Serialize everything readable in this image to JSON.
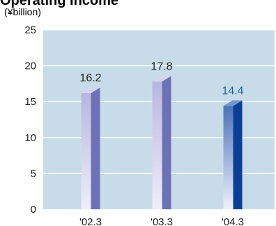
{
  "chart_data": {
    "type": "bar",
    "title": "Operating Income",
    "unit": "(¥billion)",
    "categories": [
      "'02.3",
      "'03.3",
      "'04.3"
    ],
    "values": [
      16.2,
      17.8,
      14.4
    ],
    "value_labels": [
      "16.2",
      "17.8",
      "14.4"
    ],
    "ylim": [
      0,
      25
    ],
    "yticks": [
      "0",
      "5",
      "10",
      "15",
      "20",
      "25"
    ],
    "grid": true,
    "colors": {
      "plot_background": "#c7dce8",
      "gridline": "#ffffff",
      "bar_front_top": "#b9b6df",
      "bar_front_bottom": "#efeef9",
      "bar_side": "#6d72b6",
      "bar_top": "#d7d5ee",
      "highlight_front_top": "#4d73b8",
      "highlight_front_bottom": "#eef1fb",
      "highlight_side": "#0b3f96",
      "highlight_top": "#7596cb",
      "highlight_label": "#1f5fa8"
    },
    "highlight_index": 2
  }
}
